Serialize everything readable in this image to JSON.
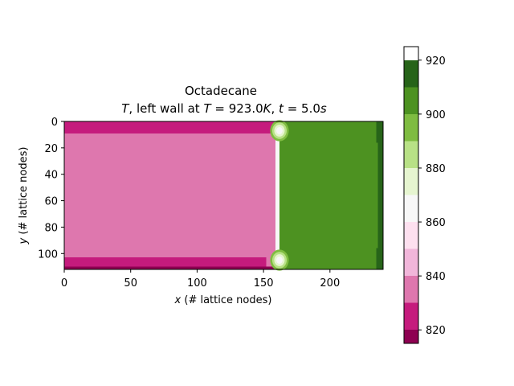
{
  "chart_data": {
    "type": "heatmap",
    "title": "Octadecane",
    "subtitle": "T, left wall at T = 923.0K, t = 5.0s",
    "subtitle_parts": {
      "var": "T",
      "text1": ", left wall at ",
      "var2": "T",
      "eq1": " = 923.0",
      "unitK": "K",
      "text2": ", ",
      "var3": "t",
      "eq2": " = 5.0",
      "unitS": "s"
    },
    "xlabel_var": "x",
    "xlabel_rest": " (# lattice nodes)",
    "ylabel_var": "y",
    "ylabel_rest": " (# lattice nodes)",
    "xlim": [
      0,
      240
    ],
    "ylim": [
      112,
      0
    ],
    "x_ticks": [
      0,
      50,
      100,
      150,
      200
    ],
    "y_ticks": [
      0,
      20,
      40,
      60,
      80,
      100
    ],
    "colorbar": {
      "levels": [
        815,
        820,
        830,
        840,
        850,
        860,
        870,
        880,
        890,
        900,
        910,
        920,
        925
      ],
      "colors": [
        "#8e0152",
        "#c51b7d",
        "#de77ae",
        "#f1b6da",
        "#fde0ef",
        "#f7f7f7",
        "#e6f5d0",
        "#b8e186",
        "#7fbc41",
        "#4d9221",
        "#276419"
      ],
      "ticks": [
        820,
        840,
        860,
        880,
        900,
        920
      ]
    },
    "regions": [
      {
        "x0": 0,
        "x1": 160,
        "y0": 0,
        "y1": 112,
        "value": 835
      },
      {
        "x0": 0,
        "x1": 158,
        "y0": 0,
        "y1": 9,
        "value": 825
      },
      {
        "x0": 0,
        "x1": 152,
        "y0": 103,
        "y1": 110,
        "value": 825
      },
      {
        "x0": 0,
        "x1": 160,
        "y0": 110,
        "y1": 112,
        "value": 818
      },
      {
        "x0": 159,
        "x1": 162,
        "y0": 0,
        "y1": 112,
        "value": 865
      },
      {
        "x0": 162,
        "x1": 240,
        "y0": 0,
        "y1": 112,
        "value": 905
      },
      {
        "x0": 236,
        "x1": 240,
        "y0": 0,
        "y1": 112,
        "value": 915
      },
      {
        "x0": 235,
        "x1": 240,
        "y0": 0,
        "y1": 16,
        "value": 915
      },
      {
        "x0": 235,
        "x1": 240,
        "y0": 96,
        "y1": 112,
        "value": 915
      }
    ],
    "blobs": [
      {
        "cx": 162,
        "cy": 7,
        "rx": 7,
        "ry": 8,
        "values": [
          895,
          885,
          875,
          865
        ]
      },
      {
        "cx": 162,
        "cy": 105,
        "rx": 7,
        "ry": 8,
        "values": [
          895,
          885,
          875,
          865
        ]
      }
    ]
  }
}
